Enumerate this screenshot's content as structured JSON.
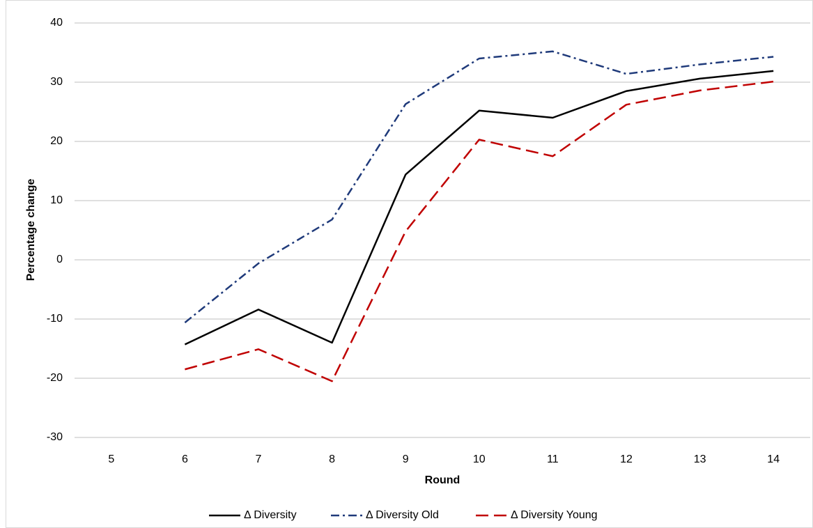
{
  "chart_data": {
    "type": "line",
    "x_label": "Round",
    "y_label": "Percentage change",
    "categories": [
      5,
      6,
      7,
      8,
      9,
      10,
      11,
      12,
      13,
      14
    ],
    "series": [
      {
        "name": "Δ Diversity",
        "color": "#000000",
        "dash": "solid",
        "values": [
          null,
          -14.3,
          -8.4,
          -14,
          14.4,
          25.2,
          24,
          28.5,
          30.6,
          31.9
        ]
      },
      {
        "name": "Δ Diversity Old",
        "color": "#1f3a7a",
        "dash": "dashdot",
        "values": [
          null,
          -10.6,
          -0.6,
          6.8,
          26.3,
          34,
          35.2,
          31.4,
          33,
          34.3
        ]
      },
      {
        "name": "Δ Diversity Young",
        "color": "#c00000",
        "dash": "dashed",
        "values": [
          null,
          -18.5,
          -15.1,
          -20.5,
          4.8,
          20.3,
          17.5,
          26.2,
          28.6,
          30.1
        ]
      }
    ],
    "ylim": [
      -30,
      40
    ],
    "yticks": [
      -30,
      -20,
      -10,
      0,
      10,
      20,
      30,
      40
    ],
    "grid": true,
    "legend": "bottom"
  }
}
